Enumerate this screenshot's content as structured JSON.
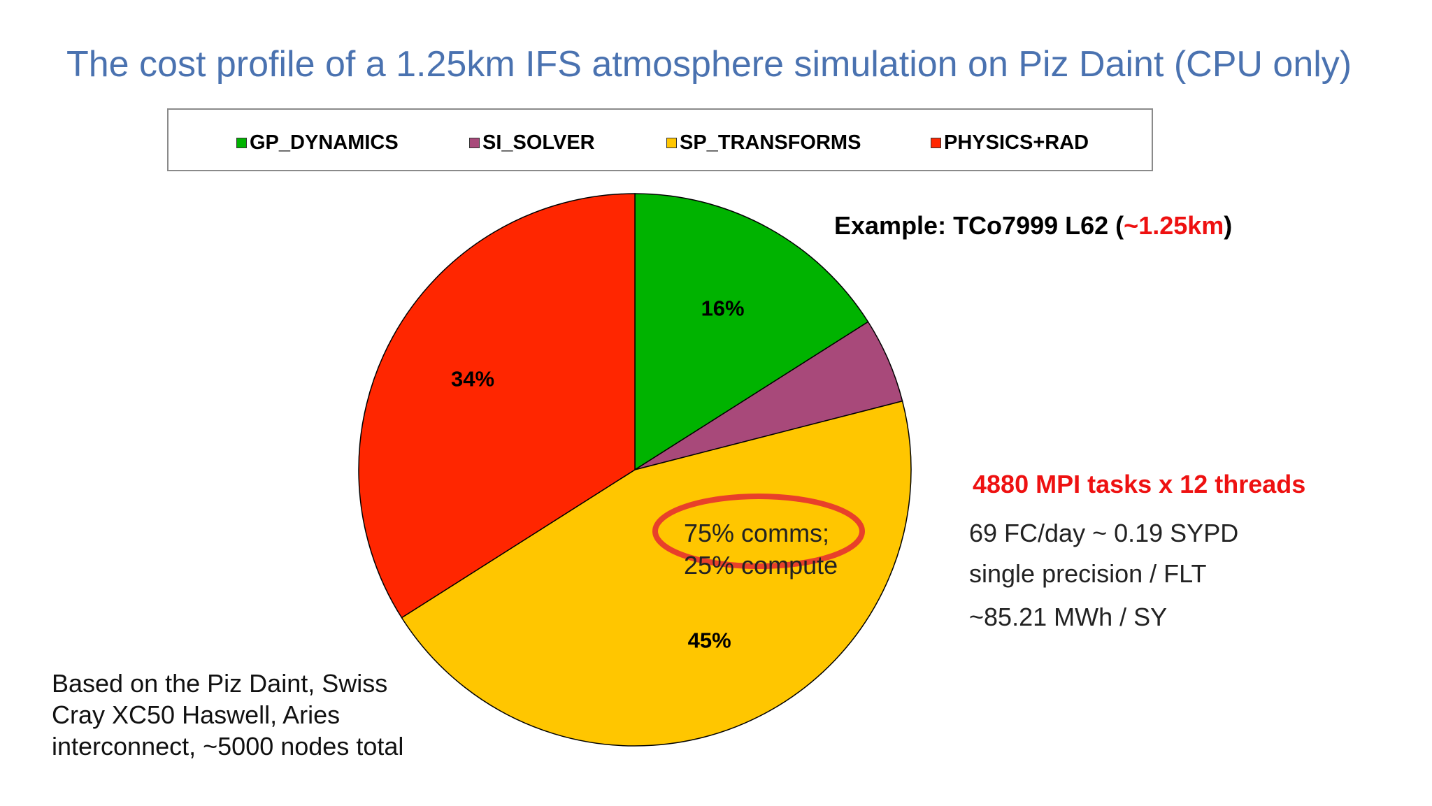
{
  "title": "The cost profile of a 1.25km IFS atmosphere simulation on Piz Daint (CPU only)",
  "chart_data": {
    "type": "pie",
    "title": "The cost profile of a 1.25km IFS atmosphere simulation on Piz Daint (CPU only)",
    "legend_placement": "top",
    "series": [
      {
        "name": "GP_DYNAMICS",
        "value": 16,
        "label": "16%",
        "color": "#00b300"
      },
      {
        "name": "SI_SOLVER",
        "value": 5,
        "label": "",
        "color": "#a8497a"
      },
      {
        "name": "SP_TRANSFORMS",
        "value": 45,
        "label": "45%",
        "color": "#ffc600"
      },
      {
        "name": "PHYSICS+RAD",
        "value": 34,
        "label": "34%",
        "color": "#ff2600"
      }
    ],
    "annotations": {
      "sp_transforms_note_line1": "75% comms;",
      "sp_transforms_note_line2": "25% compute",
      "highlight_color": "#e8402a"
    }
  },
  "example": {
    "prefix": "Example: TCo7999 L62 (",
    "highlight": "~1.25km",
    "suffix": ")"
  },
  "info": {
    "tasks": "4880 MPI tasks x 12 threads",
    "fc_per_day": "69 FC/day ~ 0.19 SYPD",
    "precision": "single precision / FLT",
    "energy": "~85.21 MWh / SY"
  },
  "machine_note": {
    "line1": "Based on the Piz Daint, Swiss",
    "line2": "Cray XC50 Haswell, Aries",
    "line3": "interconnect, ~5000 nodes total"
  }
}
